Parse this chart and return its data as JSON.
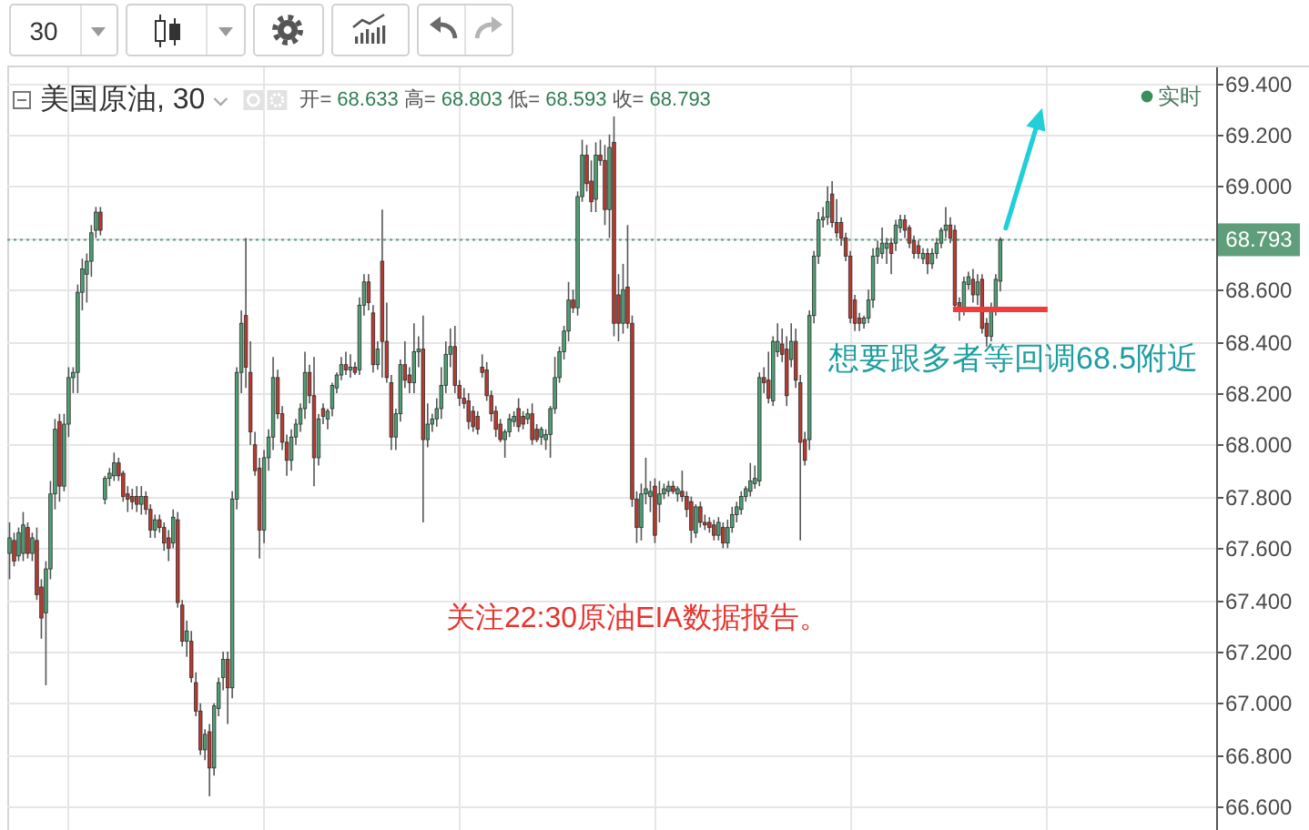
{
  "chart_data": {
    "type": "candlestick",
    "title": "美国原油, 30",
    "subtitle": "开= 68.633 高= 68.803 低= 68.593 收= 68.793",
    "categories": [
      null,
      null,
      null,
      null,
      null,
      null,
      null,
      null,
      null,
      null,
      null,
      null,
      null,
      null,
      null,
      null,
      null,
      null,
      null,
      null,
      null,
      null,
      null,
      null,
      null,
      null,
      null,
      null,
      null,
      null,
      null,
      null,
      null,
      null,
      null,
      null,
      null,
      null,
      null,
      null,
      null,
      null,
      null,
      null,
      null,
      null,
      null,
      null,
      null,
      null,
      null,
      null,
      null,
      null,
      null,
      null,
      null,
      null,
      null,
      null,
      null,
      null,
      null,
      null,
      null,
      null,
      null,
      null,
      null,
      null,
      null,
      null,
      null,
      null,
      null,
      null,
      null,
      null,
      null,
      null,
      null,
      null,
      null,
      null,
      null,
      null,
      null,
      null,
      null,
      null,
      null,
      null,
      null,
      null,
      null,
      null,
      null,
      null,
      null,
      null,
      null,
      null,
      null,
      null,
      null,
      null,
      null,
      null,
      null,
      null,
      null,
      null,
      null,
      null,
      null,
      null,
      null,
      null,
      null,
      null,
      null,
      null,
      null,
      null,
      null,
      null,
      null,
      null,
      null,
      null,
      null,
      null,
      null,
      null,
      null,
      null,
      null,
      null,
      null,
      null,
      null,
      null,
      null,
      null,
      null,
      null,
      null,
      null,
      null,
      null,
      null,
      null,
      null,
      null,
      null,
      null,
      null,
      null,
      null,
      null,
      null,
      null,
      null,
      null,
      null,
      null,
      null,
      null,
      null,
      null,
      null,
      null,
      null,
      null,
      null,
      null,
      null,
      null,
      null,
      null,
      null,
      null,
      null,
      null,
      null,
      null,
      null,
      null,
      null,
      null,
      null,
      null,
      null,
      null,
      null,
      null,
      null,
      null,
      null,
      null,
      null,
      null,
      null,
      null,
      null,
      null,
      null,
      null,
      null,
      null,
      null,
      null,
      null,
      null,
      null,
      null,
      null,
      null,
      null,
      null,
      null,
      null,
      null,
      null,
      null,
      null,
      null,
      null,
      null,
      null,
      null,
      null,
      null,
      null,
      null,
      null,
      null,
      null,
      null,
      null,
      null,
      null,
      null,
      null,
      null,
      null,
      null,
      null,
      null,
      null,
      null,
      null,
      null,
      null,
      null,
      null,
      null,
      null,
      null,
      null,
      null,
      null,
      null,
      null,
      null,
      null
    ],
    "ohlc": [
      [
        67.58,
        67.7,
        67.48,
        67.64
      ],
      [
        67.63,
        67.66,
        67.53,
        67.55
      ],
      [
        67.57,
        67.68,
        67.55,
        67.66
      ],
      [
        67.58,
        67.74,
        67.55,
        67.69
      ],
      [
        67.68,
        67.7,
        67.56,
        67.58
      ],
      [
        67.58,
        67.66,
        67.55,
        67.64
      ],
      [
        67.63,
        67.68,
        67.4,
        67.42
      ],
      [
        67.45,
        67.48,
        67.25,
        67.33
      ],
      [
        67.35,
        67.55,
        67.07,
        67.52
      ],
      [
        67.52,
        67.86,
        67.48,
        67.81
      ],
      [
        67.81,
        68.1,
        67.75,
        68.06
      ],
      [
        68.09,
        68.12,
        67.78,
        67.84
      ],
      [
        67.84,
        68.12,
        67.82,
        68.08
      ],
      [
        68.08,
        68.3,
        68.03,
        68.26
      ],
      [
        68.26,
        68.3,
        68.2,
        68.28
      ],
      [
        68.28,
        68.62,
        68.2,
        68.59
      ],
      [
        68.59,
        68.72,
        68.52,
        68.68
      ],
      [
        68.66,
        68.74,
        68.55,
        68.71
      ],
      [
        68.71,
        68.85,
        68.65,
        68.82
      ],
      [
        68.83,
        68.92,
        68.8,
        68.9
      ],
      [
        68.9,
        68.92,
        68.81,
        68.83
      ],
      [
        67.79,
        67.88,
        67.77,
        67.87
      ],
      [
        67.87,
        67.91,
        67.84,
        67.89
      ],
      [
        67.88,
        67.97,
        67.86,
        67.93
      ],
      [
        67.93,
        67.95,
        67.86,
        67.88
      ],
      [
        67.89,
        67.9,
        67.78,
        67.8
      ],
      [
        67.81,
        67.84,
        67.74,
        67.79
      ],
      [
        67.8,
        67.83,
        67.75,
        67.78
      ],
      [
        67.8,
        67.84,
        67.74,
        67.77
      ],
      [
        67.77,
        67.84,
        67.73,
        67.8
      ],
      [
        67.8,
        67.82,
        67.73,
        67.75
      ],
      [
        67.75,
        67.77,
        67.64,
        67.67
      ],
      [
        67.67,
        67.73,
        67.64,
        67.71
      ],
      [
        67.71,
        67.73,
        67.66,
        67.68
      ],
      [
        67.68,
        67.7,
        67.59,
        67.62
      ],
      [
        67.64,
        67.67,
        67.55,
        67.6
      ],
      [
        67.62,
        67.75,
        67.6,
        67.72
      ],
      [
        67.71,
        67.74,
        67.37,
        67.39
      ],
      [
        67.38,
        67.4,
        67.22,
        67.24
      ],
      [
        67.24,
        67.32,
        67.18,
        67.28
      ],
      [
        67.24,
        67.28,
        67.08,
        67.1
      ],
      [
        67.08,
        67.12,
        66.95,
        66.97
      ],
      [
        66.97,
        67.0,
        66.8,
        66.82
      ],
      [
        66.82,
        66.9,
        66.78,
        66.88
      ],
      [
        66.89,
        66.92,
        66.64,
        66.75
      ],
      [
        66.75,
        67.0,
        66.72,
        66.99
      ],
      [
        66.98,
        67.1,
        66.95,
        67.08
      ],
      [
        67.1,
        67.2,
        67.05,
        67.17
      ],
      [
        67.17,
        67.2,
        66.92,
        67.06
      ],
      [
        67.06,
        67.82,
        67.02,
        67.79
      ],
      [
        67.79,
        68.3,
        67.75,
        68.28
      ],
      [
        68.28,
        68.52,
        68.2,
        68.47
      ],
      [
        68.5,
        68.8,
        68.22,
        68.3
      ],
      [
        68.28,
        68.4,
        68.0,
        68.05
      ],
      [
        68.0,
        68.05,
        67.88,
        67.9
      ],
      [
        67.91,
        67.95,
        67.56,
        67.67
      ],
      [
        67.67,
        67.98,
        67.62,
        67.95
      ],
      [
        67.95,
        68.06,
        67.9,
        68.03
      ],
      [
        68.03,
        68.34,
        67.98,
        68.26
      ],
      [
        68.26,
        68.29,
        68.1,
        68.12
      ],
      [
        68.12,
        68.15,
        67.98,
        68.01
      ],
      [
        68.01,
        68.04,
        67.88,
        67.94
      ],
      [
        67.94,
        68.06,
        67.9,
        68.03
      ],
      [
        68.03,
        68.1,
        68.0,
        68.08
      ],
      [
        68.08,
        68.16,
        68.05,
        68.14
      ],
      [
        68.14,
        68.36,
        68.1,
        68.28
      ],
      [
        68.28,
        68.31,
        68.16,
        68.19
      ],
      [
        68.19,
        68.34,
        67.84,
        67.95
      ],
      [
        67.95,
        68.12,
        67.92,
        68.1
      ],
      [
        68.14,
        68.16,
        68.08,
        68.11
      ],
      [
        68.1,
        68.14,
        68.06,
        68.13
      ],
      [
        68.14,
        68.24,
        68.11,
        68.23
      ],
      [
        68.22,
        68.28,
        68.2,
        68.27
      ],
      [
        68.27,
        68.34,
        68.25,
        68.31
      ],
      [
        68.31,
        68.36,
        68.27,
        68.29
      ],
      [
        68.29,
        68.35,
        68.26,
        68.3
      ],
      [
        68.3,
        68.32,
        68.27,
        68.28
      ],
      [
        68.29,
        68.57,
        68.27,
        68.54
      ],
      [
        68.54,
        68.66,
        68.5,
        68.63
      ],
      [
        68.63,
        68.66,
        68.52,
        68.55
      ],
      [
        68.51,
        68.54,
        68.28,
        68.31
      ],
      [
        68.31,
        68.4,
        68.29,
        68.37
      ],
      [
        68.71,
        68.91,
        68.26,
        68.4
      ],
      [
        68.4,
        68.55,
        68.24,
        68.26
      ],
      [
        68.24,
        68.27,
        67.98,
        68.03
      ],
      [
        68.03,
        68.14,
        67.98,
        68.12
      ],
      [
        68.12,
        68.33,
        68.09,
        68.31
      ],
      [
        68.31,
        68.4,
        68.22,
        68.25
      ],
      [
        68.27,
        68.3,
        68.2,
        68.24
      ],
      [
        68.24,
        68.47,
        68.2,
        68.36
      ],
      [
        68.36,
        68.42,
        68.3,
        68.37
      ],
      [
        68.37,
        68.5,
        67.7,
        68.02
      ],
      [
        68.02,
        68.16,
        67.99,
        68.08
      ],
      [
        68.08,
        68.12,
        68.05,
        68.1
      ],
      [
        68.1,
        68.18,
        68.07,
        68.14
      ],
      [
        68.14,
        68.3,
        68.1,
        68.23
      ],
      [
        68.23,
        68.4,
        68.2,
        68.35
      ],
      [
        68.35,
        68.45,
        68.3,
        68.38
      ],
      [
        68.38,
        68.46,
        68.2,
        68.23
      ],
      [
        68.23,
        68.25,
        68.15,
        68.18
      ],
      [
        68.18,
        68.22,
        68.14,
        68.16
      ],
      [
        68.17,
        68.2,
        68.06,
        68.09
      ],
      [
        68.13,
        68.15,
        68.05,
        68.07
      ],
      [
        68.11,
        68.13,
        68.04,
        68.06
      ],
      [
        68.3,
        68.35,
        68.26,
        68.28
      ],
      [
        68.29,
        68.32,
        68.17,
        68.19
      ],
      [
        68.19,
        68.21,
        68.09,
        68.12
      ],
      [
        68.13,
        68.15,
        68.03,
        68.06
      ],
      [
        68.08,
        68.1,
        68.01,
        68.02
      ],
      [
        68.02,
        68.06,
        67.95,
        68.05
      ],
      [
        68.05,
        68.12,
        68.03,
        68.1
      ],
      [
        68.09,
        68.13,
        68.07,
        68.11
      ],
      [
        68.14,
        68.18,
        68.05,
        68.07
      ],
      [
        68.11,
        68.13,
        68.06,
        68.08
      ],
      [
        68.1,
        68.14,
        68.08,
        68.12
      ],
      [
        68.12,
        68.16,
        68.0,
        68.02
      ],
      [
        68.06,
        68.08,
        68.01,
        68.02
      ],
      [
        68.03,
        68.07,
        68.0,
        68.06
      ],
      [
        68.02,
        68.06,
        67.98,
        68.04
      ],
      [
        68.04,
        68.15,
        67.95,
        68.14
      ],
      [
        68.14,
        68.34,
        68.12,
        68.26
      ],
      [
        68.26,
        68.38,
        68.24,
        68.36
      ],
      [
        68.36,
        68.46,
        68.33,
        68.44
      ],
      [
        68.44,
        68.63,
        68.4,
        68.56
      ],
      [
        68.56,
        68.6,
        68.51,
        68.53
      ],
      [
        68.53,
        68.98,
        68.5,
        68.96
      ],
      [
        68.96,
        69.18,
        68.94,
        69.12
      ],
      [
        69.12,
        69.16,
        68.98,
        69.01
      ],
      [
        69.02,
        69.1,
        68.9,
        68.94
      ],
      [
        68.95,
        69.17,
        68.9,
        69.12
      ],
      [
        69.12,
        69.18,
        69.08,
        69.1
      ],
      [
        69.1,
        69.16,
        68.85,
        68.91
      ],
      [
        68.91,
        69.2,
        68.8,
        69.15
      ],
      [
        69.17,
        69.27,
        68.42,
        68.47
      ],
      [
        68.58,
        68.66,
        68.4,
        68.47
      ],
      [
        68.47,
        68.7,
        68.43,
        68.6
      ],
      [
        68.61,
        68.85,
        68.45,
        68.47
      ],
      [
        68.47,
        68.5,
        67.76,
        67.79
      ],
      [
        67.79,
        67.82,
        67.62,
        67.68
      ],
      [
        67.68,
        67.85,
        67.63,
        67.81
      ],
      [
        67.81,
        67.95,
        67.77,
        67.83
      ],
      [
        67.8,
        67.86,
        67.74,
        67.82
      ],
      [
        67.84,
        67.87,
        67.62,
        67.65
      ],
      [
        67.77,
        67.86,
        67.7,
        67.81
      ],
      [
        67.81,
        67.85,
        67.79,
        67.83
      ],
      [
        67.82,
        67.86,
        67.8,
        67.84
      ],
      [
        67.84,
        67.86,
        67.81,
        67.82
      ],
      [
        67.81,
        67.84,
        67.78,
        67.83
      ],
      [
        67.82,
        67.9,
        67.78,
        67.8
      ],
      [
        67.8,
        67.82,
        67.72,
        67.75
      ],
      [
        67.78,
        67.8,
        67.62,
        67.67
      ],
      [
        67.66,
        67.77,
        67.64,
        67.76
      ],
      [
        67.76,
        67.78,
        67.68,
        67.7
      ],
      [
        67.7,
        67.73,
        67.67,
        67.69
      ],
      [
        67.7,
        67.72,
        67.66,
        67.68
      ],
      [
        67.69,
        67.71,
        67.63,
        67.65
      ],
      [
        67.65,
        67.72,
        67.63,
        67.7
      ],
      [
        67.68,
        67.7,
        67.6,
        67.62
      ],
      [
        67.62,
        67.71,
        67.6,
        67.68
      ],
      [
        67.68,
        67.76,
        67.66,
        67.73
      ],
      [
        67.73,
        67.78,
        67.7,
        67.76
      ],
      [
        67.75,
        67.82,
        67.73,
        67.8
      ],
      [
        67.8,
        67.84,
        67.78,
        67.83
      ],
      [
        67.82,
        67.93,
        67.8,
        67.86
      ],
      [
        67.85,
        67.92,
        67.83,
        67.87
      ],
      [
        67.86,
        68.28,
        67.84,
        68.26
      ],
      [
        68.26,
        68.3,
        68.2,
        68.24
      ],
      [
        68.25,
        68.36,
        68.16,
        68.18
      ],
      [
        68.17,
        68.42,
        68.15,
        68.4
      ],
      [
        68.36,
        68.47,
        68.34,
        68.4
      ],
      [
        68.39,
        68.45,
        68.32,
        68.35
      ],
      [
        68.37,
        68.42,
        68.15,
        68.19
      ],
      [
        68.33,
        68.47,
        68.3,
        68.4
      ],
      [
        68.4,
        68.45,
        68.22,
        68.25
      ],
      [
        68.24,
        68.27,
        67.63,
        68.01
      ],
      [
        68.02,
        68.05,
        67.92,
        67.94
      ],
      [
        68.02,
        68.52,
        67.98,
        68.5
      ],
      [
        68.5,
        68.75,
        68.47,
        68.73
      ],
      [
        68.73,
        68.9,
        68.7,
        68.87
      ],
      [
        68.87,
        68.92,
        68.84,
        68.88
      ],
      [
        68.88,
        69.0,
        68.85,
        68.94
      ],
      [
        68.97,
        69.02,
        68.84,
        68.86
      ],
      [
        68.86,
        68.95,
        68.8,
        68.82
      ],
      [
        68.86,
        68.88,
        68.77,
        68.8
      ],
      [
        68.8,
        68.82,
        68.71,
        68.73
      ],
      [
        68.73,
        68.75,
        68.47,
        68.49
      ],
      [
        68.56,
        68.58,
        68.44,
        68.47
      ],
      [
        68.49,
        68.51,
        68.44,
        68.47
      ],
      [
        68.47,
        68.5,
        68.45,
        68.49
      ],
      [
        68.49,
        68.6,
        68.47,
        68.56
      ],
      [
        68.56,
        68.76,
        68.53,
        68.73
      ],
      [
        68.73,
        68.79,
        68.7,
        68.76
      ],
      [
        68.74,
        68.84,
        68.72,
        68.78
      ],
      [
        68.76,
        68.8,
        68.7,
        68.78
      ],
      [
        68.78,
        68.8,
        68.66,
        68.74
      ],
      [
        68.78,
        68.87,
        68.75,
        68.85
      ],
      [
        68.84,
        68.89,
        68.82,
        68.87
      ],
      [
        68.87,
        68.89,
        68.8,
        68.83
      ],
      [
        68.84,
        68.85,
        68.76,
        68.78
      ],
      [
        68.79,
        68.81,
        68.72,
        68.74
      ],
      [
        68.77,
        68.79,
        68.72,
        68.74
      ],
      [
        68.72,
        68.76,
        68.7,
        68.74
      ],
      [
        68.74,
        68.76,
        68.66,
        68.7
      ],
      [
        68.7,
        68.76,
        68.68,
        68.74
      ],
      [
        68.74,
        68.8,
        68.72,
        68.78
      ],
      [
        68.78,
        68.84,
        68.76,
        68.83
      ],
      [
        68.83,
        68.92,
        68.8,
        68.85
      ],
      [
        68.85,
        68.88,
        68.78,
        68.8
      ],
      [
        68.83,
        68.85,
        68.52,
        68.54
      ],
      [
        68.55,
        68.57,
        68.48,
        68.52
      ],
      [
        68.52,
        68.65,
        68.5,
        68.63
      ],
      [
        68.62,
        68.67,
        68.6,
        68.65
      ],
      [
        68.64,
        68.68,
        68.55,
        68.58
      ],
      [
        68.58,
        68.66,
        68.54,
        68.63
      ],
      [
        68.64,
        68.66,
        68.43,
        68.45
      ],
      [
        68.47,
        68.49,
        68.38,
        68.42
      ],
      [
        68.42,
        68.55,
        68.4,
        68.52
      ],
      [
        68.52,
        68.66,
        68.5,
        68.64
      ],
      [
        68.633,
        68.803,
        68.593,
        68.793
      ],
      null,
      null,
      null,
      null,
      null,
      null,
      null,
      null,
      null,
      null,
      null,
      null,
      null,
      null,
      null,
      null,
      null,
      null,
      null,
      null,
      null,
      null,
      null,
      null,
      null,
      null,
      null,
      null,
      null,
      null,
      null,
      null,
      null,
      null,
      null,
      null,
      null,
      null,
      null,
      null,
      null,
      null,
      null,
      null,
      null,
      null,
      null
    ],
    "colors": [
      "#4f9f74",
      "#b83a30",
      "#4f9f74",
      "#4f9f74",
      "#b83a30",
      "#4f9f74",
      "#b83a30",
      "#b83a30",
      "#4f9f74",
      "#4f9f74",
      "#4f9f74",
      "#b83a30",
      "#4f9f74",
      "#4f9f74",
      "#4f9f74",
      "#4f9f74",
      "#4f9f74",
      "#4f9f74",
      "#4f9f74",
      "#4f9f74",
      "#b83a30",
      "#4f9f74",
      "#4f9f74",
      "#4f9f74",
      "#b83a30",
      "#b83a30",
      "#b83a30",
      "#b83a30",
      "#b83a30",
      "#4f9f74",
      "#b83a30",
      "#b83a30",
      "#4f9f74",
      "#b83a30",
      "#b83a30",
      "#b83a30",
      "#4f9f74",
      "#b83a30",
      "#b83a30",
      "#4f9f74",
      "#b83a30",
      "#b83a30",
      "#b83a30",
      "#4f9f74",
      "#b83a30",
      "#4f9f74",
      "#4f9f74",
      "#4f9f74",
      "#b83a30",
      "#4f9f74",
      "#4f9f74",
      "#4f9f74",
      "#b83a30",
      "#b83a30",
      "#b83a30",
      "#b83a30",
      "#4f9f74",
      "#4f9f74",
      "#4f9f74",
      "#b83a30",
      "#b83a30",
      "#b83a30",
      "#4f9f74",
      "#4f9f74",
      "#4f9f74",
      "#4f9f74",
      "#b83a30",
      "#b83a30",
      "#4f9f74",
      "#b83a30",
      "#4f9f74",
      "#4f9f74",
      "#4f9f74",
      "#4f9f74",
      "#b83a30",
      "#4f9f74",
      "#b83a30",
      "#4f9f74",
      "#4f9f74",
      "#b83a30",
      "#b83a30",
      "#4f9f74",
      "#b83a30",
      "#b83a30",
      "#b83a30",
      "#4f9f74",
      "#4f9f74",
      "#b83a30",
      "#b83a30",
      "#4f9f74",
      "#4f9f74",
      "#b83a30",
      "#4f9f74",
      "#4f9f74",
      "#4f9f74",
      "#4f9f74",
      "#4f9f74",
      "#4f9f74",
      "#b83a30",
      "#b83a30",
      "#b83a30",
      "#b83a30",
      "#b83a30",
      "#b83a30",
      "#b83a30",
      "#b83a30",
      "#b83a30",
      "#b83a30",
      "#b83a30",
      "#4f9f74",
      "#4f9f74",
      "#4f9f74",
      "#b83a30",
      "#b83a30",
      "#4f9f74",
      "#b83a30",
      "#b83a30",
      "#4f9f74",
      "#4f9f74",
      "#4f9f74",
      "#4f9f74",
      "#4f9f74",
      "#4f9f74",
      "#4f9f74",
      "#b83a30",
      "#4f9f74",
      "#4f9f74",
      "#b83a30",
      "#b83a30",
      "#4f9f74",
      "#b83a30",
      "#b83a30",
      "#4f9f74",
      "#b83a30",
      "#b83a30",
      "#4f9f74",
      "#b83a30",
      "#b83a30",
      "#b83a30",
      "#4f9f74",
      "#4f9f74",
      "#4f9f74",
      "#b83a30",
      "#4f9f74",
      "#4f9f74",
      "#4f9f74",
      "#b83a30",
      "#4f9f74",
      "#b83a30",
      "#b83a30",
      "#b83a30",
      "#4f9f74",
      "#b83a30",
      "#b83a30",
      "#b83a30",
      "#b83a30",
      "#4f9f74",
      "#b83a30",
      "#4f9f74",
      "#4f9f74",
      "#4f9f74",
      "#4f9f74",
      "#4f9f74",
      "#4f9f74",
      "#4f9f74",
      "#4f9f74",
      "#b83a30",
      "#b83a30",
      "#4f9f74",
      "#4f9f74",
      "#b83a30",
      "#b83a30",
      "#4f9f74",
      "#b83a30",
      "#b83a30",
      "#b83a30",
      "#4f9f74",
      "#4f9f74",
      "#4f9f74",
      "#4f9f74",
      "#4f9f74",
      "#b83a30",
      "#b83a30",
      "#b83a30",
      "#b83a30",
      "#b83a30",
      "#b83a30",
      "#b83a30",
      "#4f9f74",
      "#4f9f74",
      "#4f9f74",
      "#4f9f74",
      "#4f9f74",
      "#4f9f74",
      "#b83a30",
      "#4f9f74",
      "#4f9f74",
      "#b83a30",
      "#b83a30",
      "#b83a30",
      "#b83a30",
      "#4f9f74",
      "#b83a30",
      "#4f9f74",
      "#4f9f74",
      "#4f9f74",
      "#4f9f74",
      "#b83a30",
      "#b83a30",
      "#b83a30",
      "#4f9f74",
      "#4f9f74",
      "#b83a30",
      "#4f9f74",
      "#b83a30",
      "#b83a30",
      "#4f9f74",
      "#4f9f74",
      "#4f9f74",
      null,
      null,
      null,
      null,
      null,
      null,
      null,
      null,
      null,
      null,
      null,
      null,
      null,
      null,
      null,
      null,
      null,
      null,
      null,
      null,
      null,
      null,
      null,
      null,
      null,
      null,
      null,
      null,
      null,
      null,
      null,
      null,
      null,
      null,
      null,
      null,
      null,
      null,
      null,
      null,
      null,
      null,
      null,
      null,
      null,
      null,
      null
    ],
    "ylim": [
      66.51,
      69.46
    ],
    "yticks": [
      {
        "value": 66.6,
        "label": "66.600"
      },
      {
        "value": 66.8,
        "label": "66.800"
      },
      {
        "value": 67.0,
        "label": "67.000"
      },
      {
        "value": 67.2,
        "label": "67.200"
      },
      {
        "value": 67.4,
        "label": "67.400"
      },
      {
        "value": 67.6,
        "label": "67.600"
      },
      {
        "value": 67.8,
        "label": "67.800"
      },
      {
        "value": 68.0,
        "label": "68.000"
      },
      {
        "value": 68.2,
        "label": "68.200"
      },
      {
        "value": 68.4,
        "label": "68.400"
      },
      {
        "value": 68.6,
        "label": "68.600"
      },
      {
        "value": 68.8,
        "label": null
      },
      {
        "value": 69.0,
        "label": "69.000"
      },
      {
        "value": 69.2,
        "label": "69.200"
      },
      {
        "value": 69.4,
        "label": "69.400"
      }
    ],
    "grid": true,
    "ref_lines": [
      {
        "axis": "y",
        "value": 68.793,
        "label": "68.793",
        "color": "#5e9e7a",
        "line_style": "dotted"
      }
    ],
    "annotations": [
      "30",
      "实时",
      "关注22:30原油EIA数据报告。",
      "想要跟多者等回调68.5附近"
    ]
  }
}
